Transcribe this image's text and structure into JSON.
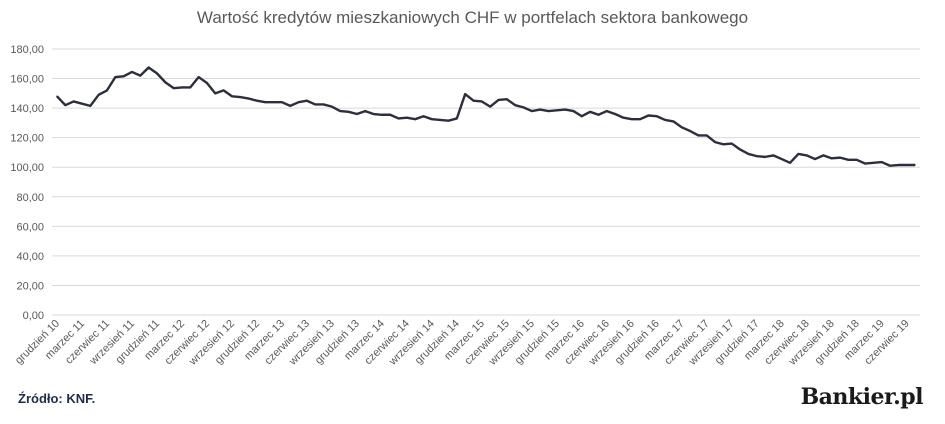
{
  "chart_data": {
    "type": "line",
    "title": "Wartość kredytów mieszkaniowych CHF w portfelach sektora bankowego",
    "xlabel": "",
    "ylabel": "",
    "ylim": [
      0,
      180
    ],
    "yticks": [
      "0,00",
      "20,00",
      "40,00",
      "60,00",
      "80,00",
      "100,00",
      "120,00",
      "140,00",
      "160,00",
      "180,00"
    ],
    "grid": true,
    "x": [
      "grudzień 10",
      "styczeń 11",
      "luty 11",
      "marzec 11",
      "kwiecień 11",
      "maj 11",
      "czerwiec 11",
      "lipiec 11",
      "sierpień 11",
      "wrzesień 11",
      "październik 11",
      "listopad 11",
      "grudzień 11",
      "styczeń 12",
      "luty 12",
      "marzec 12",
      "kwiecień 12",
      "maj 12",
      "czerwiec 12",
      "lipiec 12",
      "sierpień 12",
      "wrzesień 12",
      "październik 12",
      "listopad 12",
      "grudzień 12",
      "styczeń 13",
      "luty 13",
      "marzec 13",
      "kwiecień 13",
      "maj 13",
      "czerwiec 13",
      "lipiec 13",
      "sierpień 13",
      "wrzesień 13",
      "październik 13",
      "listopad 13",
      "grudzień 13",
      "styczeń 14",
      "luty 14",
      "marzec 14",
      "kwiecień 14",
      "maj 14",
      "czerwiec 14",
      "lipiec 14",
      "sierpień 14",
      "wrzesień 14",
      "październik 14",
      "listopad 14",
      "grudzień 14",
      "styczeń 15",
      "luty 15",
      "marzec 15",
      "kwiecień 15",
      "maj 15",
      "czerwiec 15",
      "lipiec 15",
      "sierpień 15",
      "wrzesień 15",
      "październik 15",
      "listopad 15",
      "grudzień 15",
      "styczeń 16",
      "luty 16",
      "marzec 16",
      "kwiecień 16",
      "maj 16",
      "czerwiec 16",
      "lipiec 16",
      "sierpień 16",
      "wrzesień 16",
      "październik 16",
      "listopad 16",
      "grudzień 16",
      "styczeń 17",
      "luty 17",
      "marzec 17",
      "kwiecień 17",
      "maj 17",
      "czerwiec 17",
      "lipiec 17",
      "sierpień 17",
      "wrzesień 17",
      "październik 17",
      "listopad 17",
      "grudzień 17",
      "styczeń 18",
      "luty 18",
      "marzec 18",
      "kwiecień 18",
      "maj 18",
      "czerwiec 18",
      "lipiec 18",
      "sierpień 18",
      "wrzesień 18",
      "październik 18",
      "listopad 18",
      "grudzień 18",
      "styczeń 19",
      "luty 19",
      "marzec 19",
      "kwiecień 19",
      "maj 19",
      "czerwiec 19",
      "lipiec 19"
    ],
    "tick_labels": [
      "grudzień 10",
      "marzec 11",
      "czerwiec 11",
      "wrzesień 11",
      "grudzień 11",
      "marzec 12",
      "czerwiec 12",
      "wrzesień 12",
      "grudzień 12",
      "marzec 13",
      "czerwiec 13",
      "wrzesień 13",
      "grudzień 13",
      "marzec 14",
      "czerwiec 14",
      "wrzesień 14",
      "grudzień 14",
      "marzec 15",
      "czerwiec 15",
      "wrzesień 15",
      "grudzień 15",
      "marzec 16",
      "czerwiec 16",
      "wrzesień 16",
      "grudzień 16",
      "marzec 17",
      "czerwiec 17",
      "wrzesień 17",
      "grudzień 17",
      "marzec 18",
      "czerwiec 18",
      "wrzesień 18",
      "grudzień 18",
      "marzec 19",
      "czerwiec 19"
    ],
    "series": [
      {
        "name": "",
        "color": "#2b2f3e",
        "values": [
          148,
          142,
          144.5,
          143,
          141.5,
          149,
          152,
          161,
          161.5,
          164.5,
          162,
          167.5,
          163.5,
          157.5,
          153.5,
          154,
          154,
          161,
          157,
          150,
          152,
          148,
          147.5,
          146.5,
          145,
          144,
          144,
          144,
          141.5,
          144,
          145,
          142.5,
          142.5,
          141,
          138,
          137.5,
          136,
          138,
          136,
          135.5,
          135.5,
          133,
          133.5,
          132.5,
          134.5,
          132.5,
          132,
          131.5,
          133,
          149.5,
          145,
          144.5,
          141,
          145.5,
          146,
          142,
          140.5,
          138,
          139,
          138,
          138.5,
          139,
          138,
          134.5,
          137.5,
          135.5,
          138,
          136,
          133.5,
          132.5,
          132.5,
          135,
          134.5,
          132,
          131,
          127,
          124.5,
          121.5,
          121.5,
          117,
          115.5,
          116,
          112,
          109,
          107.5,
          107,
          108,
          105.5,
          103,
          109,
          108,
          105.5,
          108,
          106,
          106.5,
          105,
          105,
          102.5,
          103,
          103.5,
          101,
          101.5,
          101.5,
          101.5
        ]
      }
    ]
  },
  "footer": {
    "source": "Źródło: KNF.",
    "brand": "Bankier.pl"
  }
}
